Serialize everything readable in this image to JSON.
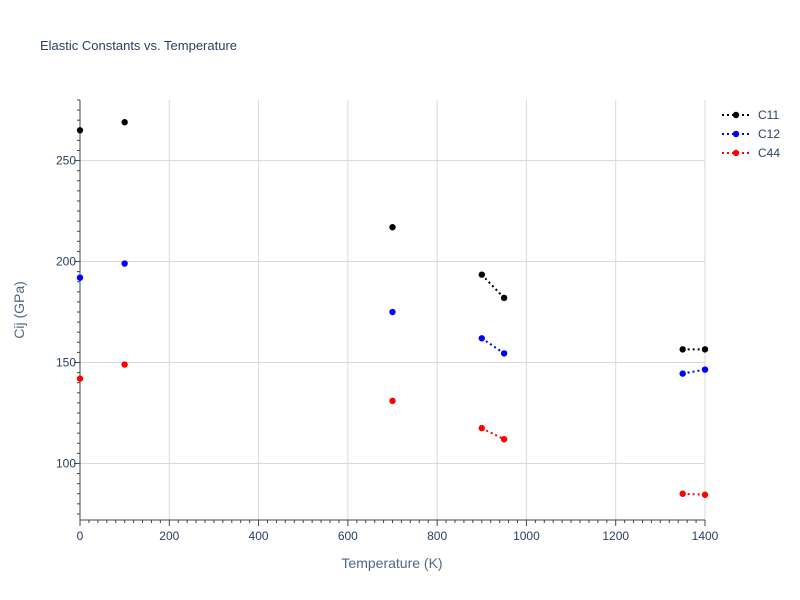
{
  "chart_data": {
    "type": "line",
    "title": "Elastic Constants vs. Temperature",
    "xlabel": "Temperature (K)",
    "ylabel": "Cij (GPa)",
    "xlim": [
      0,
      1400
    ],
    "ylim": [
      72,
      280
    ],
    "xticks": [
      0,
      200,
      400,
      600,
      800,
      1000,
      1200,
      1400
    ],
    "yticks": [
      100,
      150,
      200,
      250
    ],
    "grid": true,
    "legend_position": "top-right",
    "line_style": "dotted",
    "series": [
      {
        "name": "C11",
        "color": "#000000",
        "segments": [
          [
            [
              0,
              265
            ]
          ],
          [
            [
              100,
              269
            ]
          ],
          [
            [
              700,
              217
            ]
          ],
          [
            [
              900,
              193.5
            ],
            [
              950,
              182
            ]
          ],
          [
            [
              1350,
              156.5
            ],
            [
              1400,
              156.5
            ]
          ]
        ]
      },
      {
        "name": "C12",
        "color": "#0000ff",
        "segments": [
          [
            [
              0,
              192
            ]
          ],
          [
            [
              100,
              199
            ]
          ],
          [
            [
              700,
              175
            ]
          ],
          [
            [
              900,
              162
            ],
            [
              950,
              154.5
            ]
          ],
          [
            [
              1350,
              144.5
            ],
            [
              1400,
              146.5
            ]
          ]
        ]
      },
      {
        "name": "C44",
        "color": "#ff0000",
        "segments": [
          [
            [
              0,
              142
            ]
          ],
          [
            [
              100,
              149
            ]
          ],
          [
            [
              700,
              131
            ]
          ],
          [
            [
              900,
              117.5
            ],
            [
              950,
              112
            ]
          ],
          [
            [
              1350,
              85
            ],
            [
              1400,
              84.5
            ]
          ]
        ]
      }
    ]
  }
}
